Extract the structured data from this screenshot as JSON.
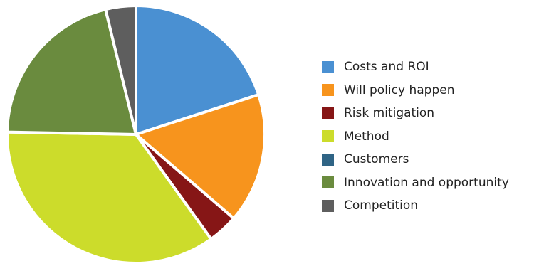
{
  "chart_data": {
    "type": "pie",
    "title": "",
    "legend_position": "right",
    "start_angle_deg": 0,
    "direction": "clockwise",
    "slices": [
      {
        "label": "Costs and ROI",
        "value": 20.0,
        "color": "#4A90D2"
      },
      {
        "label": "Will policy happen",
        "value": 16.3,
        "color": "#F7941D"
      },
      {
        "label": "Risk mitigation",
        "value": 3.8,
        "color": "#861616"
      },
      {
        "label": "Method",
        "value": 35.2,
        "color": "#CCDC2B"
      },
      {
        "label": "Customers",
        "value": 0.0,
        "color": "#2F6485"
      },
      {
        "label": "Innovation and opportunity",
        "value": 20.9,
        "color": "#6A8B3E"
      },
      {
        "label": "Competition",
        "value": 3.8,
        "color": "#5E5E5E"
      }
    ]
  }
}
